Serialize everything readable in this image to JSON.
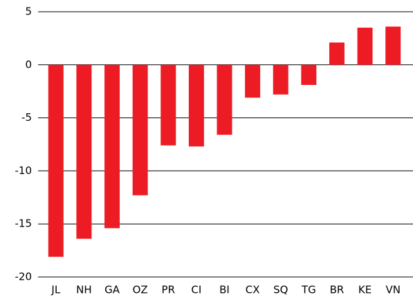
{
  "chart_data": {
    "type": "bar",
    "categories": [
      "JL",
      "NH",
      "GA",
      "OZ",
      "PR",
      "CI",
      "BI",
      "CX",
      "SQ",
      "TG",
      "BR",
      "KE",
      "VN"
    ],
    "values": [
      -18.1,
      -16.4,
      -15.4,
      -12.3,
      -7.6,
      -7.7,
      -6.6,
      -3.1,
      -2.8,
      -1.9,
      2.1,
      3.5,
      3.6
    ],
    "color": "#ed1c24",
    "ylim": [
      -20,
      5
    ],
    "yticks": [
      -20,
      -15,
      -10,
      -5,
      0,
      5
    ],
    "grid": true
  }
}
